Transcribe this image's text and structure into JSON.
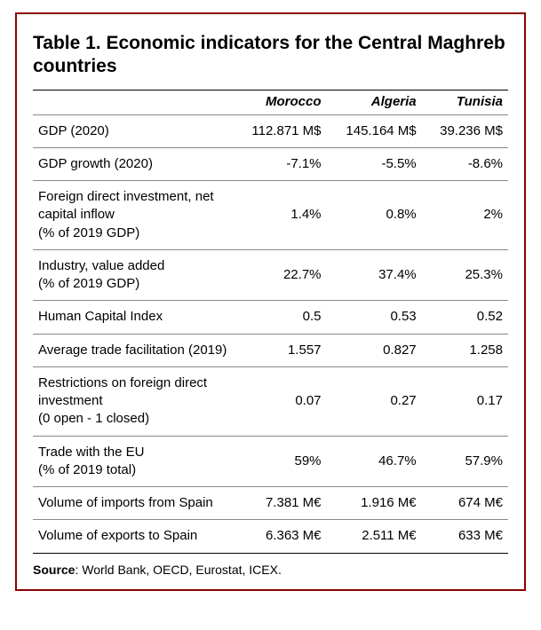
{
  "table": {
    "title": "Table 1. Economic indicators for the Central Maghreb countries",
    "columns": [
      "",
      "Morocco",
      "Algeria",
      "Tunisia"
    ],
    "rows": [
      {
        "label": "GDP (2020)",
        "morocco": "112.871 M$",
        "algeria": "145.164 M$",
        "tunisia": "39.236 M$"
      },
      {
        "label": "GDP growth (2020)",
        "morocco": "-7.1%",
        "algeria": "-5.5%",
        "tunisia": "-8.6%"
      },
      {
        "label": "Foreign direct investment, net capital inflow\n(% of 2019 GDP)",
        "morocco": "1.4%",
        "algeria": "0.8%",
        "tunisia": "2%"
      },
      {
        "label": "Industry, value added\n(% of 2019 GDP)",
        "morocco": "22.7%",
        "algeria": "37.4%",
        "tunisia": "25.3%"
      },
      {
        "label": "Human Capital Index",
        "morocco": "0.5",
        "algeria": "0.53",
        "tunisia": "0.52"
      },
      {
        "label": "Average trade facilitation (2019)",
        "morocco": "1.557",
        "algeria": "0.827",
        "tunisia": "1.258"
      },
      {
        "label": "Restrictions on foreign direct investment\n(0 open - 1 closed)",
        "morocco": "0.07",
        "algeria": "0.27",
        "tunisia": "0.17"
      },
      {
        "label": "Trade with the EU\n(% of 2019 total)",
        "morocco": "59%",
        "algeria": "46.7%",
        "tunisia": "57.9%"
      },
      {
        "label": "Volume of imports from Spain",
        "morocco": "7.381 M€",
        "algeria": "1.916 M€",
        "tunisia": "674 M€"
      },
      {
        "label": "Volume of exports to Spain",
        "morocco": "6.363 M€",
        "algeria": "2.511 M€",
        "tunisia": "633 M€"
      }
    ],
    "source_label": "Source",
    "source_text": ": World Bank, OECD, Eurostat, ICEX.",
    "border_color": "#8b0000",
    "rule_color": "#888888",
    "text_color": "#000000",
    "background_color": "#ffffff",
    "title_fontsize": 21,
    "body_fontsize": 15,
    "source_fontsize": 14
  }
}
